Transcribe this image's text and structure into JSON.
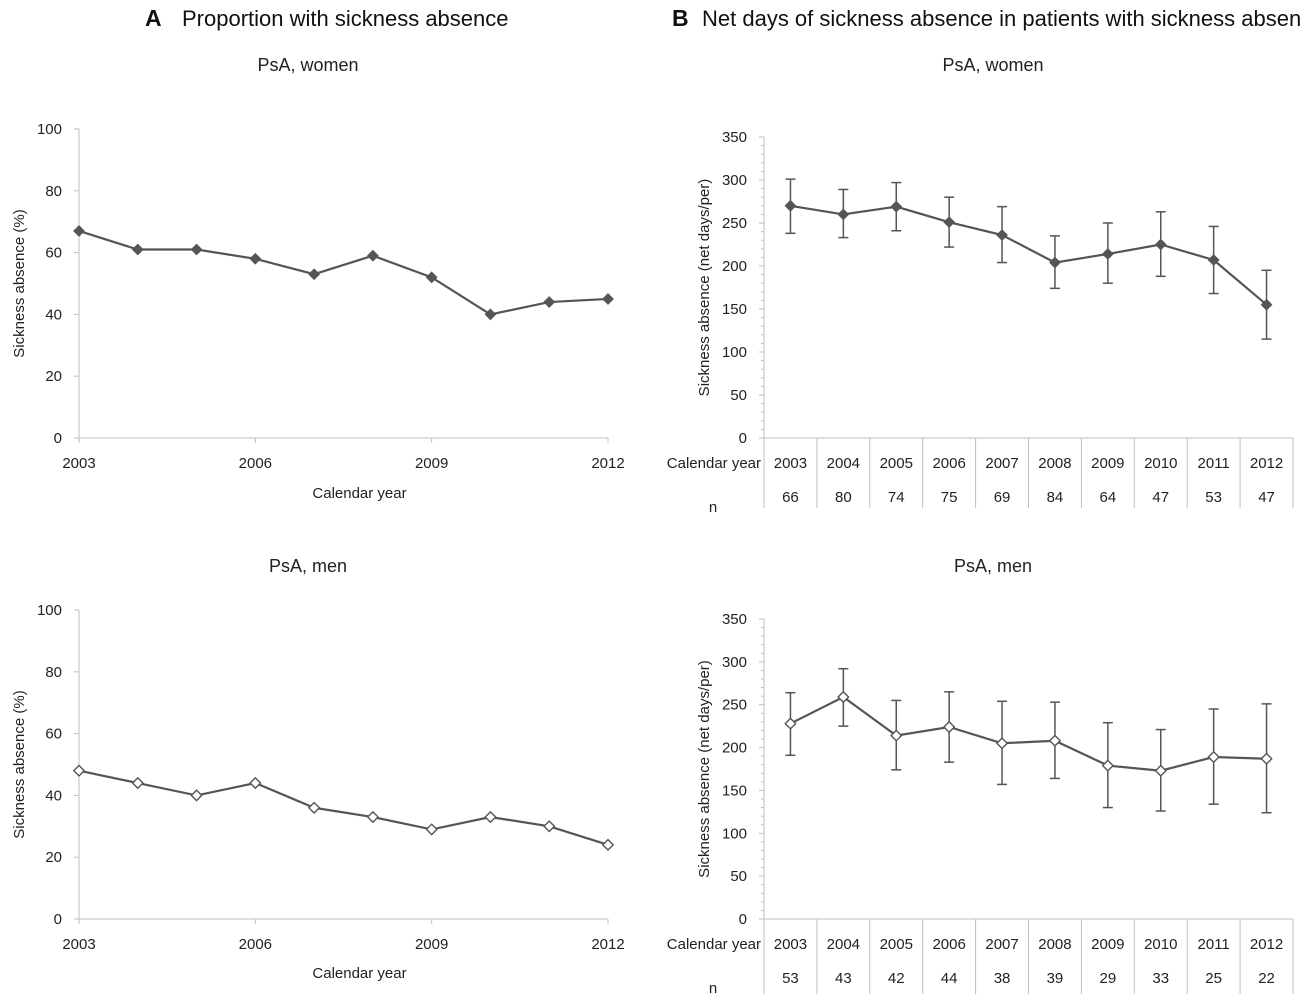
{
  "headings": [
    {
      "letter": "A",
      "text": "Proportion with sickness absence"
    },
    {
      "letter": "B",
      "text": "Net days of sickness absence in patients with sickness absence"
    }
  ],
  "chart_data": [
    {
      "type": "line",
      "panel": "A",
      "title": "PsA, women",
      "xlabel": "Calendar year",
      "ylabel": "Sickness absence (%)",
      "xlim": [
        2003,
        2012
      ],
      "ylim": [
        0,
        100
      ],
      "yticks": [
        0,
        20,
        40,
        60,
        80,
        100
      ],
      "xticks": [
        2003,
        2006,
        2009,
        2012
      ],
      "marker": "filled-diamond",
      "color": "#555555",
      "x": [
        2003,
        2004,
        2005,
        2006,
        2007,
        2008,
        2009,
        2010,
        2011,
        2012
      ],
      "values": [
        67,
        61,
        61,
        58,
        53,
        59,
        52,
        40,
        44,
        45
      ]
    },
    {
      "type": "line",
      "panel": "B",
      "title": "PsA, women",
      "xlabel": "Calendar year",
      "ylabel": "Sickness absence (net days/per)",
      "ylim": [
        0,
        350
      ],
      "yticks": [
        0,
        50,
        100,
        150,
        200,
        250,
        300,
        350
      ],
      "marker": "filled-diamond",
      "color": "#555555",
      "categories": [
        "2003",
        "2004",
        "2005",
        "2006",
        "2007",
        "2008",
        "2009",
        "2010",
        "2011",
        "2012"
      ],
      "values": [
        270,
        260,
        269,
        251,
        236,
        204,
        214,
        225,
        207,
        155
      ],
      "error_low": [
        238,
        233,
        241,
        222,
        204,
        174,
        180,
        188,
        168,
        115
      ],
      "error_high": [
        301,
        289,
        297,
        280,
        269,
        235,
        250,
        263,
        246,
        195
      ],
      "n_label": "n",
      "n": [
        "66",
        "80",
        "74",
        "75",
        "69",
        "84",
        "64",
        "47",
        "53",
        "47"
      ]
    },
    {
      "type": "line",
      "panel": "A",
      "title": "PsA, men",
      "xlabel": "Calendar year",
      "ylabel": "Sickness absence (%)",
      "xlim": [
        2003,
        2012
      ],
      "ylim": [
        0,
        100
      ],
      "yticks": [
        0,
        20,
        40,
        60,
        80,
        100
      ],
      "xticks": [
        2003,
        2006,
        2009,
        2012
      ],
      "marker": "open-diamond",
      "color": "#555555",
      "x": [
        2003,
        2004,
        2005,
        2006,
        2007,
        2008,
        2009,
        2010,
        2011,
        2012
      ],
      "values": [
        48,
        44,
        40,
        44,
        36,
        33,
        29,
        33,
        30,
        24
      ]
    },
    {
      "type": "line",
      "panel": "B",
      "title": "PsA, men",
      "xlabel": "Calendar year",
      "ylabel": "Sickness absence (net days/per)",
      "ylim": [
        0,
        350
      ],
      "yticks": [
        0,
        50,
        100,
        150,
        200,
        250,
        300,
        350
      ],
      "marker": "open-diamond",
      "color": "#555555",
      "categories": [
        "2003",
        "2004",
        "2005",
        "2006",
        "2007",
        "2008",
        "2009",
        "2010",
        "2011",
        "2012"
      ],
      "values": [
        228,
        259,
        214,
        224,
        205,
        208,
        179,
        173,
        189,
        187
      ],
      "error_low": [
        191,
        225,
        174,
        183,
        157,
        164,
        130,
        126,
        134,
        124
      ],
      "error_high": [
        264,
        292,
        255,
        265,
        254,
        253,
        229,
        221,
        245,
        251
      ],
      "n_label": "n",
      "n": [
        "53",
        "43",
        "42",
        "44",
        "38",
        "39",
        "29",
        "33",
        "25",
        "22"
      ]
    }
  ]
}
